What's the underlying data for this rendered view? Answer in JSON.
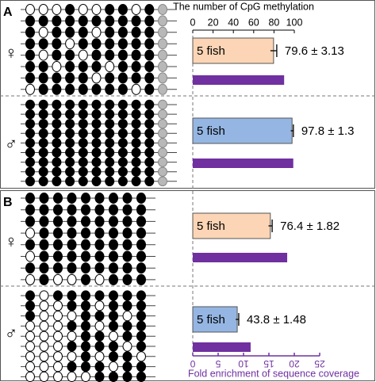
{
  "chart_data": {
    "type": "bar",
    "title": "The number of CpG methylation",
    "xlim": [
      0,
      100
    ],
    "xticks": [
      0,
      20,
      40,
      60,
      80,
      100
    ],
    "x2label": "Fold enrichment of sequence coverage",
    "x2lim": [
      0,
      25
    ],
    "x2ticks": [
      0,
      5,
      10,
      15,
      20,
      25
    ],
    "fold_color": "#7030a0",
    "panels": [
      {
        "label": "A",
        "groups": [
          {
            "sex": "♀",
            "bar_label": "5 fish",
            "value": 79.6,
            "error": 3.13,
            "value_label": "79.6 ± 3.13",
            "color": "#fbd5b5",
            "fold": 18,
            "methylation": [
              [
                0,
                0,
                0,
                1,
                0,
                0,
                1,
                1,
                0,
                1,
                null
              ],
              [
                1,
                1,
                1,
                1,
                1,
                1,
                1,
                1,
                1,
                1,
                null
              ],
              [
                1,
                0,
                1,
                1,
                1,
                0,
                1,
                1,
                1,
                1,
                null
              ],
              [
                1,
                1,
                1,
                0,
                1,
                1,
                1,
                1,
                1,
                1,
                null
              ],
              [
                1,
                0,
                1,
                1,
                0,
                1,
                1,
                1,
                1,
                1,
                null
              ],
              [
                1,
                1,
                0,
                1,
                1,
                1,
                0,
                1,
                1,
                1,
                null
              ],
              [
                1,
                1,
                1,
                1,
                1,
                0,
                1,
                1,
                1,
                1,
                null
              ],
              [
                0,
                1,
                1,
                1,
                1,
                1,
                1,
                1,
                0,
                1,
                null
              ]
            ]
          },
          {
            "sex": "♂",
            "bar_label": "5 fish",
            "value": 97.8,
            "error": 1.3,
            "value_label": "97.8 ± 1.3",
            "color": "#95b6e3",
            "fold": 19.8,
            "methylation": [
              [
                1,
                1,
                1,
                1,
                1,
                1,
                1,
                1,
                1,
                1,
                null
              ],
              [
                1,
                1,
                1,
                1,
                1,
                1,
                1,
                1,
                1,
                1,
                null
              ],
              [
                1,
                1,
                1,
                1,
                1,
                1,
                1,
                1,
                1,
                1,
                null
              ],
              [
                1,
                1,
                1,
                1,
                1,
                1,
                1,
                1,
                1,
                1,
                null
              ],
              [
                1,
                1,
                1,
                1,
                1,
                1,
                1,
                1,
                1,
                1,
                null
              ],
              [
                1,
                1,
                1,
                1,
                1,
                1,
                1,
                1,
                1,
                1,
                null
              ],
              [
                1,
                1,
                1,
                1,
                1,
                1,
                1,
                1,
                1,
                1,
                null
              ],
              [
                1,
                1,
                1,
                1,
                1,
                1,
                1,
                1,
                1,
                1,
                null
              ],
              [
                1,
                1,
                1,
                1,
                1,
                1,
                1,
                1,
                1,
                1,
                null
              ]
            ]
          }
        ]
      },
      {
        "label": "B",
        "groups": [
          {
            "sex": "♀",
            "bar_label": "5 fish",
            "value": 76.4,
            "error": 1.82,
            "value_label": "76.4 ± 1.82",
            "color": "#fbd5b5",
            "fold": 18.6,
            "methylation": [
              [
                1,
                1,
                1,
                1,
                1,
                1,
                1,
                1,
                1
              ],
              [
                1,
                1,
                1,
                1,
                1,
                1,
                1,
                1,
                1
              ],
              [
                1,
                1,
                1,
                1,
                1,
                1,
                1,
                1,
                1
              ],
              [
                0,
                1,
                1,
                1,
                1,
                1,
                1,
                1,
                1
              ],
              [
                1,
                1,
                1,
                1,
                1,
                1,
                1,
                1,
                1
              ],
              [
                0,
                1,
                1,
                1,
                1,
                1,
                1,
                1,
                1
              ],
              [
                1,
                1,
                1,
                1,
                1,
                1,
                1,
                1,
                1
              ],
              [
                0,
                1,
                0,
                0,
                1,
                0,
                1,
                1,
                1
              ]
            ]
          },
          {
            "sex": "♂",
            "bar_label": "5 fish",
            "value": 43.8,
            "error": 1.48,
            "value_label": "43.8 ± 1.48",
            "color": "#95b6e3",
            "fold": 11.4,
            "methylation": [
              [
                1,
                0,
                1,
                1,
                1,
                1,
                1,
                1,
                1
              ],
              [
                1,
                0,
                0,
                1,
                1,
                0,
                1,
                1,
                1
              ],
              [
                1,
                0,
                0,
                0,
                1,
                1,
                1,
                0,
                1
              ],
              [
                0,
                0,
                0,
                1,
                1,
                0,
                1,
                1,
                1
              ],
              [
                0,
                0,
                0,
                0,
                1,
                1,
                0,
                1,
                1
              ],
              [
                0,
                0,
                0,
                1,
                1,
                1,
                1,
                0,
                1
              ],
              [
                0,
                0,
                0,
                0,
                1,
                0,
                1,
                1,
                0
              ],
              [
                0,
                0,
                0,
                1,
                1,
                1,
                0,
                1,
                1
              ],
              [
                0,
                0,
                0,
                0,
                0,
                1,
                1,
                1,
                1
              ]
            ]
          }
        ]
      }
    ]
  }
}
